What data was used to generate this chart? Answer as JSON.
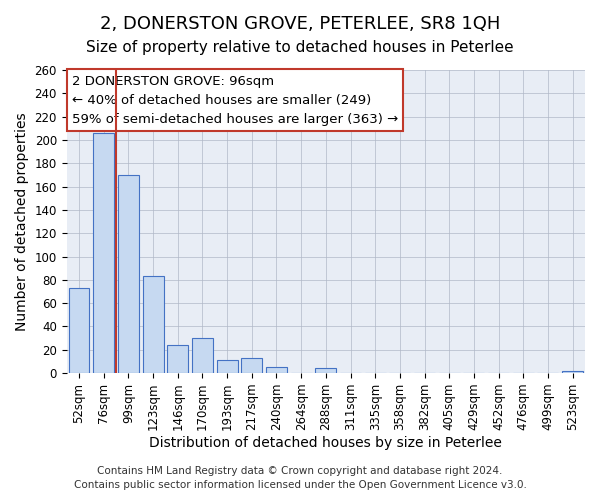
{
  "title": "2, DONERSTON GROVE, PETERLEE, SR8 1QH",
  "subtitle": "Size of property relative to detached houses in Peterlee",
  "xlabel": "Distribution of detached houses by size in Peterlee",
  "ylabel": "Number of detached properties",
  "bar_labels": [
    "52sqm",
    "76sqm",
    "99sqm",
    "123sqm",
    "146sqm",
    "170sqm",
    "193sqm",
    "217sqm",
    "240sqm",
    "264sqm",
    "288sqm",
    "311sqm",
    "335sqm",
    "358sqm",
    "382sqm",
    "405sqm",
    "429sqm",
    "452sqm",
    "476sqm",
    "499sqm",
    "523sqm"
  ],
  "bar_values": [
    73,
    206,
    170,
    83,
    24,
    30,
    11,
    13,
    5,
    0,
    4,
    0,
    0,
    0,
    0,
    0,
    0,
    0,
    0,
    0,
    2
  ],
  "bar_color": "#c6d9f1",
  "bar_edge_color": "#4472c4",
  "ylim": [
    0,
    260
  ],
  "yticks": [
    0,
    20,
    40,
    60,
    80,
    100,
    120,
    140,
    160,
    180,
    200,
    220,
    240,
    260
  ],
  "vline_color": "#c0392b",
  "annotation_title": "2 DONERSTON GROVE: 96sqm",
  "annotation_line1": "← 40% of detached houses are smaller (249)",
  "annotation_line2": "59% of semi-detached houses are larger (363) →",
  "annotation_box_color": "#ffffff",
  "annotation_box_edge_color": "#c0392b",
  "footer_line1": "Contains HM Land Registry data © Crown copyright and database right 2024.",
  "footer_line2": "Contains public sector information licensed under the Open Government Licence v3.0.",
  "title_fontsize": 13,
  "subtitle_fontsize": 11,
  "axis_label_fontsize": 10,
  "tick_fontsize": 8.5,
  "annotation_fontsize": 9.5,
  "footer_fontsize": 7.5
}
